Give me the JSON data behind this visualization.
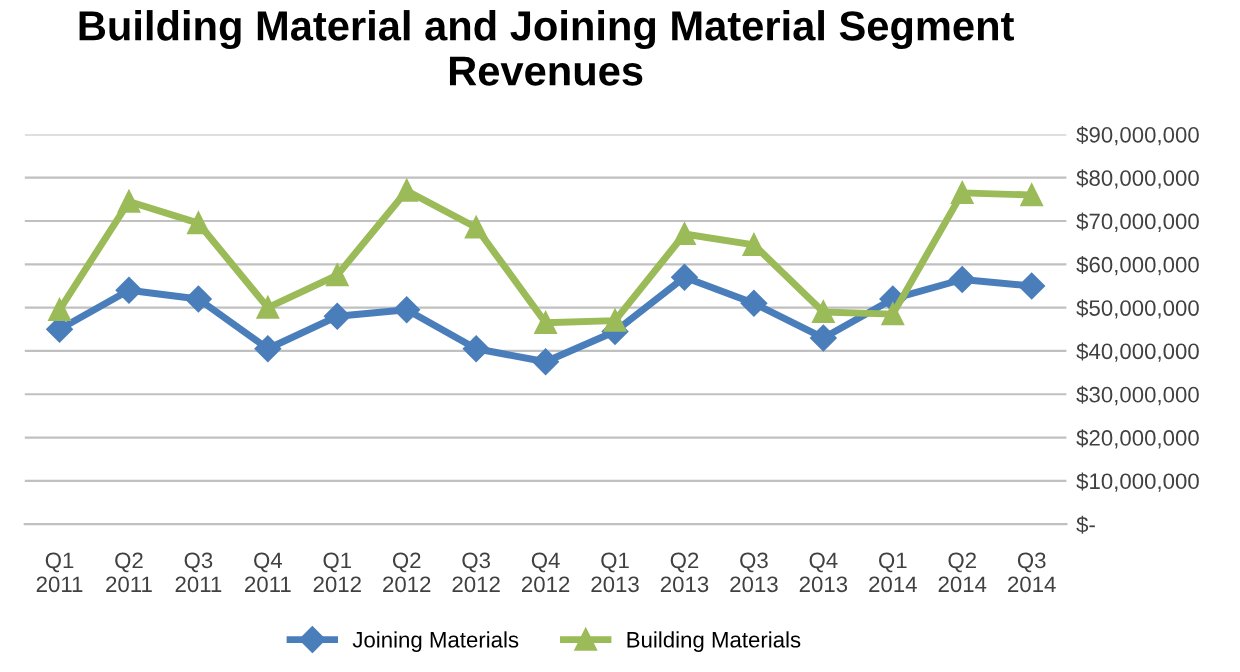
{
  "chart_data": {
    "type": "line",
    "title": "Building Material and Joining Material Segment Revenues",
    "categories": [
      "Q1\n2011",
      "Q2\n2011",
      "Q3\n2011",
      "Q4\n2011",
      "Q1\n2012",
      "Q2\n2012",
      "Q3\n2012",
      "Q4\n2012",
      "Q1\n2013",
      "Q2\n2013",
      "Q3\n2013",
      "Q4\n2013",
      "Q1\n2014",
      "Q2\n2014",
      "Q3\n2014"
    ],
    "series": [
      {
        "name": "Joining Materials",
        "color": "#4a7ebb",
        "marker": "diamond",
        "values": [
          45000000,
          54000000,
          52000000,
          40500000,
          48000000,
          49500000,
          40500000,
          37500000,
          44500000,
          57000000,
          51000000,
          43000000,
          52000000,
          56500000,
          55000000
        ]
      },
      {
        "name": "Building Materials",
        "color": "#9bbb59",
        "marker": "triangle",
        "values": [
          49500000,
          74500000,
          69500000,
          50000000,
          57500000,
          77000000,
          68500000,
          46500000,
          47000000,
          67000000,
          64500000,
          49000000,
          48500000,
          76500000,
          76000000
        ]
      }
    ],
    "ylim": [
      0,
      90000000
    ],
    "yticks": [
      {
        "value": 0,
        "label": "$-"
      },
      {
        "value": 10000000,
        "label": "$10,000,000"
      },
      {
        "value": 20000000,
        "label": "$20,000,000"
      },
      {
        "value": 30000000,
        "label": "$30,000,000"
      },
      {
        "value": 40000000,
        "label": "$40,000,000"
      },
      {
        "value": 50000000,
        "label": "$50,000,000"
      },
      {
        "value": 60000000,
        "label": "$60,000,000"
      },
      {
        "value": 70000000,
        "label": "$70,000,000"
      },
      {
        "value": 80000000,
        "label": "$80,000,000"
      },
      {
        "value": 90000000,
        "label": "$90,000,000"
      }
    ],
    "grid": "y",
    "legend": "bottom",
    "line_style": "solid"
  }
}
